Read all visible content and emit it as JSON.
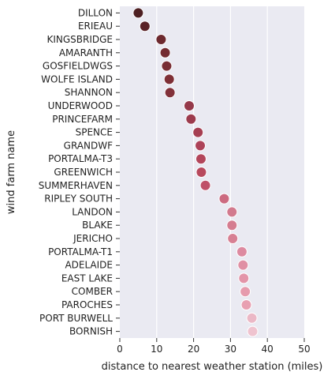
{
  "chart_data": {
    "type": "scatter",
    "xlabel": "distance to nearest weather station (miles)",
    "ylabel": "wind farm name",
    "xlim": [
      0,
      50
    ],
    "xticks": [
      0,
      10,
      20,
      30,
      40,
      50
    ],
    "grid": true,
    "categories": [
      "DILLON",
      "ERIEAU",
      "KINGSBRIDGE",
      "AMARANTH",
      "GOSFIELDWGS",
      "WOLFE ISLAND",
      "SHANNON",
      "UNDERWOOD",
      "PRINCEFARM",
      "SPENCE",
      "GRANDWF",
      "PORTALMA-T3",
      "GREENWICH",
      "SUMMERHAVEN",
      "RIPLEY SOUTH",
      "LANDON",
      "BLAKE",
      "JERICHO",
      "PORTALMA-T1",
      "ADELAIDE",
      "EAST LAKE",
      "COMBER",
      "PAROCHES",
      "PORT BURWELL",
      "BORNISH"
    ],
    "values": [
      5.0,
      6.8,
      11.2,
      12.3,
      12.7,
      13.4,
      13.6,
      18.8,
      19.3,
      21.2,
      21.8,
      22.0,
      22.1,
      23.2,
      28.3,
      30.4,
      30.4,
      30.6,
      33.1,
      33.4,
      33.6,
      34.0,
      34.3,
      35.8,
      36.0
    ],
    "colors": [
      "#4d1f22",
      "#5a2226",
      "#6d292f",
      "#742b31",
      "#782d33",
      "#7e2f36",
      "#82313a",
      "#95394a",
      "#9c3b4d",
      "#a63f52",
      "#ad4359",
      "#b3465b",
      "#b8495d",
      "#bf5068",
      "#cc6a80",
      "#d27a8e",
      "#d57d90",
      "#d78093",
      "#dd8aa0",
      "#e090a4",
      "#e394a8",
      "#e69bad",
      "#e8a0b1",
      "#ebb8c6",
      "#efc3cf"
    ]
  }
}
